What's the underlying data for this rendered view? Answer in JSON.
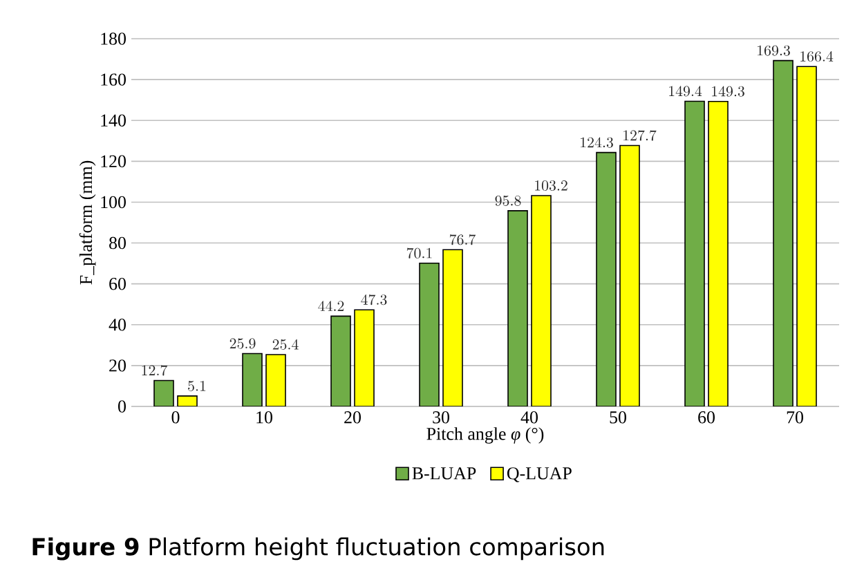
{
  "chart_data": {
    "type": "bar",
    "xlabel": "Pitch angle *φ* (°)",
    "ylabel": "F_platform (mm)",
    "categories": [
      "0",
      "10",
      "20",
      "30",
      "40",
      "50",
      "60",
      "70"
    ],
    "series": [
      {
        "name": "B-LUAP",
        "color": "#70ad47",
        "values": [
          12.7,
          25.9,
          44.2,
          70.1,
          95.8,
          124.3,
          149.4,
          169.3
        ]
      },
      {
        "name": "Q-LUAP",
        "color": "#ffff00",
        "values": [
          5.1,
          25.4,
          47.3,
          76.7,
          103.2,
          127.7,
          149.3,
          166.4
        ]
      }
    ],
    "ylim": [
      0,
      180
    ],
    "yticks": [
      0,
      20,
      40,
      60,
      80,
      100,
      120,
      140,
      160,
      180
    ],
    "grid": "y",
    "legend": "bottom",
    "data_labels": true,
    "annotations": [
      "**Figure 9**  Platform height fluctuation comparison"
    ]
  }
}
